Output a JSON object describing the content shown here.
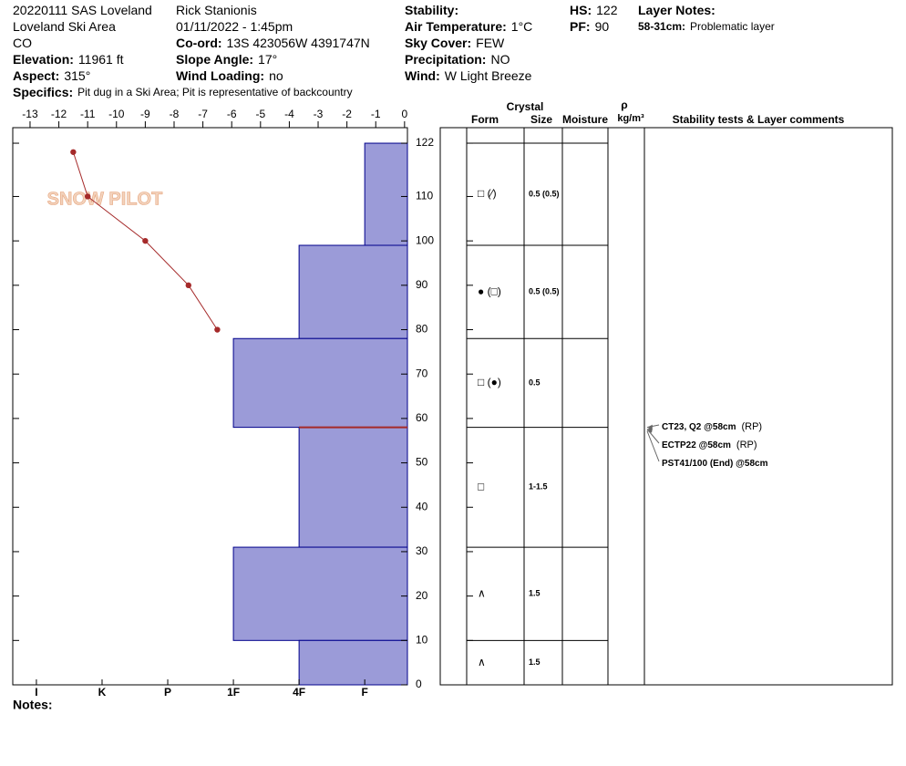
{
  "header": {
    "columns": [
      [
        {
          "value": "20220111 SAS Loveland"
        },
        {
          "value": "Loveland Ski Area"
        },
        {
          "value": "CO"
        },
        {
          "label": "Elevation:",
          "value": "11961 ft"
        },
        {
          "label": "Aspect:",
          "value": "315°"
        },
        {
          "label": "Specifics:",
          "value": "Pit dug in a Ski Area; Pit is representative of backcountry"
        }
      ],
      [
        {
          "value": "Rick Stanionis"
        },
        {
          "value": "01/11/2022 - 1:45pm"
        },
        {
          "label": "Co-ord:",
          "value": "13S 423056W 4391747N"
        },
        {
          "label": "Slope Angle:",
          "value": "17°"
        },
        {
          "label": "Wind Loading:",
          "value": "no"
        }
      ],
      [
        {
          "label": "Stability:"
        },
        {
          "label": "Air Temperature:",
          "value": "1°C"
        },
        {
          "label": "Sky Cover:",
          "value": "FEW"
        },
        {
          "label": "Precipitation:",
          "value": "NO"
        },
        {
          "label": "Wind:",
          "value": "W Light Breeze"
        }
      ],
      [
        {
          "label": "HS:",
          "value": "122"
        },
        {
          "label": "PF:",
          "value": "90"
        }
      ],
      [
        {
          "label": "Layer Notes:"
        },
        {
          "label": "58-31cm:",
          "value": "Problematic layer"
        }
      ]
    ]
  },
  "logo": "SNOW PILOT",
  "chart_data": {
    "type": "snow-profile",
    "ylim": [
      0,
      125.5
    ],
    "yticks": [
      0,
      10,
      20,
      30,
      40,
      50,
      60,
      70,
      80,
      90,
      100,
      110,
      122
    ],
    "temperature": {
      "xlim": [
        -13.6,
        0.1
      ],
      "xticks": [
        -13,
        -12,
        -11,
        -10,
        -9,
        -8,
        -7,
        -6,
        -5,
        -4,
        -3,
        -2,
        -1,
        0
      ],
      "depths": [
        120,
        110,
        100,
        90,
        80
      ],
      "values": [
        -11.5,
        -11,
        -9,
        -7.5,
        -6.5
      ],
      "color": "#a52a2a"
    },
    "hardness": {
      "xlim": [
        6.36,
        0.35
      ],
      "xticks": [
        {
          "value": 6,
          "label": "I"
        },
        {
          "value": 5,
          "label": "K"
        },
        {
          "value": 4,
          "label": "P"
        },
        {
          "value": 3,
          "label": "1F"
        },
        {
          "value": 2,
          "label": "4F"
        },
        {
          "value": 1,
          "label": "F"
        }
      ],
      "color": "#9b9bd8",
      "layers": {
        "bottom": [
          99,
          78,
          58,
          31,
          10,
          0
        ],
        "top": [
          122,
          99,
          78,
          58,
          31,
          10
        ],
        "values": [
          1,
          2,
          3,
          2,
          3,
          2
        ],
        "form": [
          "□ (⁄)",
          "● (□)",
          "□ (●)",
          "□",
          "∧",
          "∧"
        ],
        "size": [
          "0.5 (0.5)",
          "0.5 (0.5)",
          "0.5",
          "1-1.5",
          "1.5",
          "1.5"
        ]
      }
    },
    "failure_depth": 58,
    "table_headers": {
      "crystal": "Crystal",
      "form": "Form",
      "size": "Size",
      "moisture": "Moisture",
      "rho": "ρ",
      "density_unit": "kg/m³",
      "comments": "Stability tests & Layer comments"
    },
    "stability_tests": [
      {
        "test": "CT23, Q2 @58cm",
        "note": "(RP)",
        "depth": 58
      },
      {
        "test": "ECTP22 @58cm",
        "note": "(RP)",
        "depth": 58
      },
      {
        "test": "PST41/100 (End) @58cm",
        "depth": 58
      }
    ],
    "notes_label": "Notes:"
  }
}
